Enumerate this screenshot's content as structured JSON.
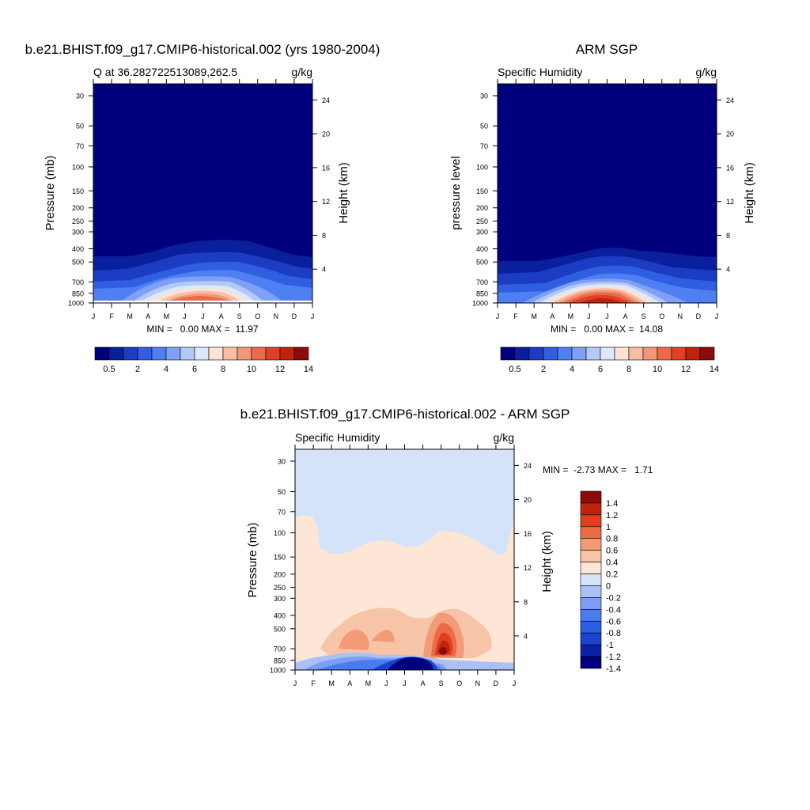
{
  "colors": {
    "humidity_scale": [
      "#00007f",
      "#0a1f9c",
      "#1c3cc4",
      "#2f5fe0",
      "#4f7ff2",
      "#7ea1f5",
      "#b3c9f7",
      "#dde9fb",
      "#fde3d3",
      "#f8bea3",
      "#f39677",
      "#ec6a4b",
      "#df4124",
      "#bd240e",
      "#8c0a0a"
    ],
    "difference_scale": [
      "#00007f",
      "#0a23a5",
      "#1a43cf",
      "#2c5ee6",
      "#4b7bf0",
      "#7d9ef4",
      "#aac0f6",
      "#d4e3fa",
      "#fde6d6",
      "#f8c4a8",
      "#f39a78",
      "#ec6b47",
      "#df3f1f",
      "#c2230c",
      "#8c0a0a"
    ]
  },
  "chart_data": [
    {
      "type": "heatmap",
      "title": "b.e21.BHIST.f09_g17.CMIP6-historical.002 (yrs 1980-2004)",
      "subtitle_left": "Q at 36.282722513089,262.5",
      "subtitle_right": "g/kg",
      "ylabel": "Pressure (mb)",
      "ylabel_right": "Height (km)",
      "x": [
        "J",
        "F",
        "M",
        "A",
        "M",
        "J",
        "J",
        "A",
        "S",
        "O",
        "N",
        "D",
        "J"
      ],
      "y_pressure_ticks": [
        "30",
        "50",
        "70",
        "100",
        "150",
        "200",
        "250",
        "300",
        "400",
        "500",
        "700",
        "850",
        "1000"
      ],
      "height_ticks": [
        "24",
        "20",
        "16",
        "12",
        "8",
        "4"
      ],
      "stats": "MIN =   0.00 MAX =  11.97",
      "max": 11.97,
      "colorbar_labels": [
        "0.5",
        "2",
        "4",
        "6",
        "8",
        "10",
        "12",
        "14"
      ]
    },
    {
      "type": "heatmap",
      "title": "ARM SGP",
      "subtitle_left": "Specific Humidity",
      "subtitle_right": "g/kg",
      "ylabel": "pressure level",
      "ylabel_right": "Height (km)",
      "x": [
        "J",
        "F",
        "M",
        "A",
        "M",
        "J",
        "J",
        "A",
        "S",
        "O",
        "N",
        "D",
        "J"
      ],
      "y_pressure_ticks": [
        "30",
        "50",
        "70",
        "100",
        "150",
        "200",
        "250",
        "300",
        "400",
        "500",
        "700",
        "850",
        "1000"
      ],
      "height_ticks": [
        "24",
        "20",
        "16",
        "12",
        "8",
        "4"
      ],
      "stats": "MIN =   0.00 MAX =  14.08",
      "max": 14.08,
      "colorbar_labels": [
        "0.5",
        "2",
        "4",
        "6",
        "8",
        "10",
        "12",
        "14"
      ]
    },
    {
      "type": "heatmap",
      "title": "b.e21.BHIST.f09_g17.CMIP6-historical.002 - ARM SGP",
      "subtitle_left": "Specific Humidity",
      "subtitle_right": "g/kg",
      "ylabel": "Pressure (mb)",
      "ylabel_right": "Height (km)",
      "x": [
        "J",
        "F",
        "M",
        "A",
        "M",
        "J",
        "J",
        "A",
        "S",
        "O",
        "N",
        "D",
        "J"
      ],
      "y_pressure_ticks": [
        "30",
        "50",
        "70",
        "100",
        "150",
        "200",
        "250",
        "300",
        "400",
        "500",
        "700",
        "850",
        "1000"
      ],
      "height_ticks": [
        "24",
        "20",
        "16",
        "12",
        "8",
        "4"
      ],
      "stats": "MIN =  -2.73 MAX =   1.71",
      "min": -2.73,
      "max": 1.71,
      "colorbar_labels": [
        "1.4",
        "1.2",
        "1",
        "0.8",
        "0.6",
        "0.4",
        "0.2",
        "0",
        "-0.2",
        "-0.4",
        "-0.6",
        "-0.8",
        "-1",
        "-1.2",
        "-1.4"
      ]
    }
  ]
}
